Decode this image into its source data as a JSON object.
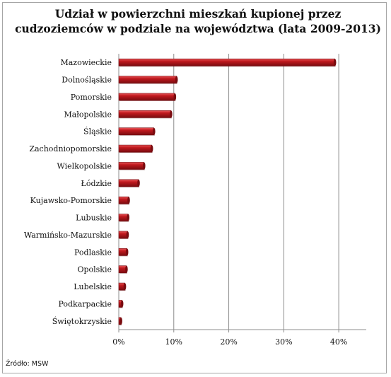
{
  "chart_data": {
    "type": "bar",
    "orientation": "horizontal",
    "title": "Udział w powierzchni mieszkań kupionej przez cudzoziemców w podziale na województwa (lata 2009-2013)",
    "categories": [
      "Mazowieckie",
      "Dolnośląskie",
      "Pomorskie",
      "Małopolskie",
      "Śląskie",
      "Zachodniopomorskie",
      "Wielkopolskie",
      "Łódzkie",
      "Kujawsko-Pomorskie",
      "Lubuskie",
      "Warmińsko-Mazurskie",
      "Podlaskie",
      "Opolskie",
      "Lubelskie",
      "Podkarpackie",
      "Świętokrzyskie"
    ],
    "values": [
      39.3,
      10.5,
      10.2,
      9.5,
      6.4,
      6.0,
      4.6,
      3.6,
      1.8,
      1.7,
      1.6,
      1.5,
      1.4,
      1.1,
      0.6,
      0.4
    ],
    "xlim": [
      0,
      45
    ],
    "ticks": [
      0,
      10,
      20,
      30,
      40
    ],
    "tick_labels": [
      "0%",
      "10%",
      "20%",
      "30%",
      "40%"
    ],
    "grid": true,
    "bar_color": "#c0191e",
    "bar_highlight": "#e8575a",
    "bar_shadow": "#7a0c10",
    "source": "Źródło: MSW"
  }
}
